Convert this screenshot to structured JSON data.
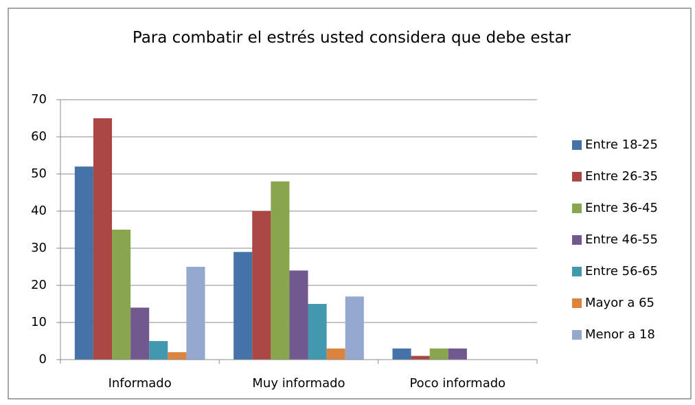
{
  "chart_data": {
    "type": "bar",
    "title": "Para combatir el estrés usted considera que debe estar",
    "categories": [
      "Informado",
      "Muy informado",
      "Poco informado"
    ],
    "series": [
      {
        "name": "Entre 18-25",
        "color": "#4572A7",
        "values": [
          52,
          29,
          3
        ]
      },
      {
        "name": "Entre 26-35",
        "color": "#AA4643",
        "values": [
          65,
          40,
          1
        ]
      },
      {
        "name": "Entre 36-45",
        "color": "#89A54E",
        "values": [
          35,
          48,
          3
        ]
      },
      {
        "name": "Entre 46-55",
        "color": "#71588F",
        "values": [
          14,
          24,
          3
        ]
      },
      {
        "name": "Entre 56-65",
        "color": "#4198AF",
        "values": [
          5,
          15,
          0
        ]
      },
      {
        "name": "Mayor a 65",
        "color": "#DB843D",
        "values": [
          2,
          3,
          0
        ]
      },
      {
        "name": "Menor a 18",
        "color": "#93A9CF",
        "values": [
          25,
          17,
          0
        ]
      }
    ],
    "ylim": [
      0,
      70
    ],
    "yticks": [
      0,
      10,
      20,
      30,
      40,
      50,
      60,
      70
    ],
    "grid": true,
    "legend": "right"
  }
}
